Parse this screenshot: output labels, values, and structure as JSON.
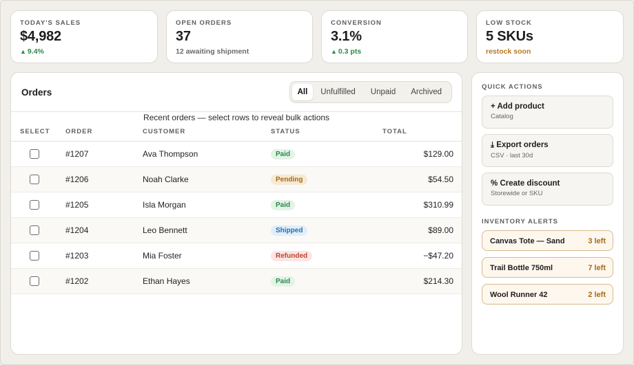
{
  "colors": {
    "background": "#f1efea",
    "positive": "#2a8a4a",
    "warning": "#b7791f",
    "paid": "#2a8a4a",
    "pending": "#a96c14",
    "shipped": "#2670b0",
    "refunded": "#c2412f"
  },
  "kpis": [
    {
      "label": "TODAY'S SALES",
      "value": "$4,982",
      "delta": "9.4%",
      "trend_icon": "up-arrow-icon"
    },
    {
      "label": "OPEN ORDERS",
      "value": "37",
      "sub": "12 awaiting shipment"
    },
    {
      "label": "CONVERSION",
      "value": "3.1%",
      "delta": "0.3 pts",
      "trend_icon": "up-arrow-icon"
    },
    {
      "label": "LOW STOCK",
      "value": "5 SKUs",
      "sub": "restock soon"
    }
  ],
  "orders": {
    "title": "Orders",
    "filters": [
      "All",
      "Unfulfilled",
      "Unpaid",
      "Archived"
    ],
    "active_filter": "All",
    "caption": "Recent orders — select rows to reveal bulk actions",
    "columns": [
      "SELECT",
      "ORDER",
      "CUSTOMER",
      "STATUS",
      "TOTAL"
    ],
    "rows": [
      {
        "checked": false,
        "order": "#1207",
        "customer": "Ava Thompson",
        "status": "Paid",
        "total": "$129.00"
      },
      {
        "checked": false,
        "order": "#1206",
        "customer": "Noah Clarke",
        "status": "Pending",
        "total": "$54.50"
      },
      {
        "checked": false,
        "order": "#1205",
        "customer": "Isla Morgan",
        "status": "Paid",
        "total": "$310.99"
      },
      {
        "checked": false,
        "order": "#1204",
        "customer": "Leo Bennett",
        "status": "Shipped",
        "total": "$89.00"
      },
      {
        "checked": false,
        "order": "#1203",
        "customer": "Mia Foster",
        "status": "Refunded",
        "total": "−$47.20"
      },
      {
        "checked": false,
        "order": "#1202",
        "customer": "Ethan Hayes",
        "status": "Paid",
        "total": "$214.30"
      }
    ]
  },
  "quick_actions": {
    "heading": "QUICK ACTIONS",
    "items": [
      {
        "icon": "plus-icon",
        "glyph": "+",
        "label": "Add product",
        "sub": "Catalog"
      },
      {
        "icon": "download-icon",
        "glyph": "⤓",
        "label": "Export orders",
        "sub": "CSV · last 30d"
      },
      {
        "icon": "percent-icon",
        "glyph": "%",
        "label": "Create discount",
        "sub": "Storewide or SKU"
      }
    ]
  },
  "inventory_alerts": {
    "heading": "INVENTORY ALERTS",
    "items": [
      {
        "name": "Canvas Tote — Sand",
        "qty": "3 left"
      },
      {
        "name": "Trail Bottle 750ml",
        "qty": "7 left"
      },
      {
        "name": "Wool Runner 42",
        "qty": "2 left"
      }
    ]
  }
}
